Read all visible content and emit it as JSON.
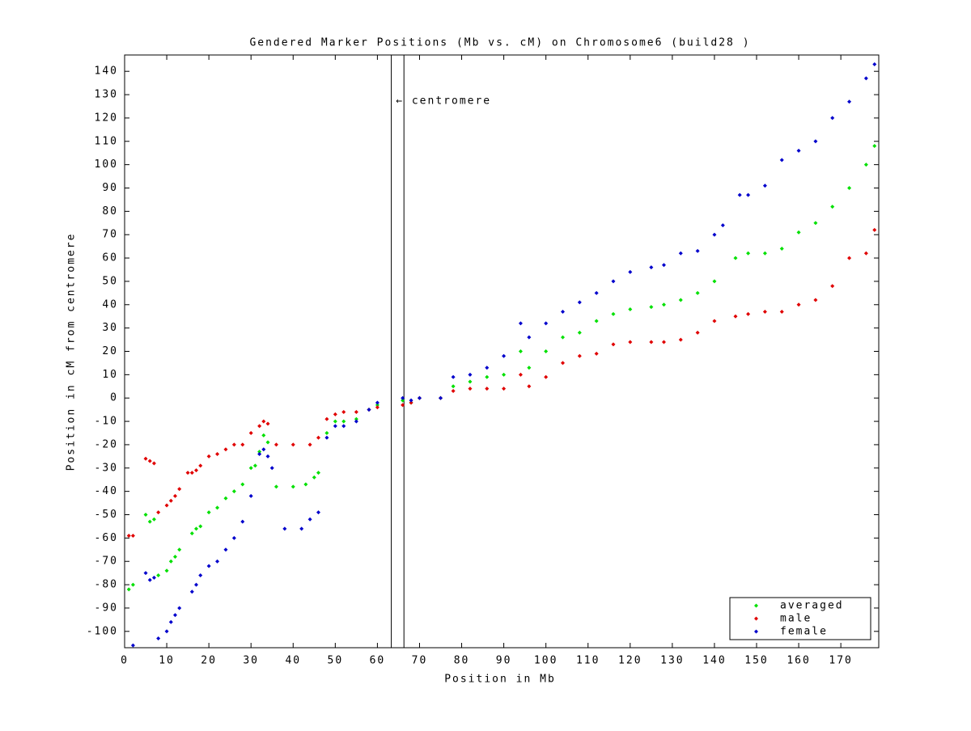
{
  "chart_data": {
    "type": "scatter",
    "title": "Gendered Marker Positions (Mb vs. cM) on Chromosome6 (build28 )",
    "x_label": "Position in Mb",
    "y_label": "Position in cM from centromere",
    "xlim": [
      0,
      179
    ],
    "ylim": [
      -107,
      147
    ],
    "xticks": [
      0,
      10,
      20,
      30,
      40,
      50,
      60,
      70,
      80,
      90,
      100,
      110,
      120,
      130,
      140,
      150,
      160,
      170
    ],
    "yticks": [
      -100,
      -90,
      -80,
      -70,
      -60,
      -50,
      -40,
      -30,
      -20,
      -10,
      0,
      10,
      20,
      30,
      40,
      50,
      60,
      70,
      80,
      90,
      100,
      110,
      120,
      130,
      140
    ],
    "vlines": [
      63.3,
      66.3
    ],
    "annotation": "← centromere",
    "legend_position": "lower right",
    "series": [
      {
        "name": "averaged",
        "color": "#00e000",
        "x": [
          1,
          2,
          5,
          6,
          7,
          8,
          10,
          11,
          12,
          13,
          16,
          17,
          18,
          20,
          22,
          24,
          26,
          28,
          30,
          31,
          32,
          33,
          34,
          36,
          40,
          43,
          45,
          46,
          48,
          50,
          52,
          55,
          58,
          60,
          66,
          68,
          70,
          75,
          78,
          82,
          86,
          90,
          94,
          96,
          100,
          104,
          108,
          112,
          116,
          120,
          125,
          128,
          132,
          136,
          140,
          145,
          148,
          152,
          156,
          160,
          164,
          168,
          172,
          176,
          178
        ],
        "values": [
          -82,
          -80,
          -50,
          -53,
          -52,
          -76,
          -74,
          -70,
          -68,
          -65,
          -58,
          -56,
          -55,
          -49,
          -47,
          -43,
          -40,
          -37,
          -30,
          -29,
          -23,
          -16,
          -19,
          -38,
          -38,
          -37,
          -34,
          -32,
          -15,
          -10,
          -10,
          -9,
          -5,
          -3,
          -1,
          -2,
          0,
          0,
          5,
          7,
          9,
          10,
          20,
          13,
          20,
          26,
          28,
          33,
          36,
          38,
          39,
          40,
          42,
          45,
          50,
          60,
          62,
          62,
          64,
          71,
          75,
          82,
          90,
          100,
          108
        ]
      },
      {
        "name": "male",
        "color": "#e00000",
        "x": [
          1,
          2,
          5,
          6,
          7,
          8,
          10,
          11,
          12,
          13,
          15,
          16,
          17,
          18,
          20,
          22,
          24,
          26,
          28,
          30,
          32,
          33,
          34,
          36,
          40,
          44,
          46,
          48,
          50,
          52,
          55,
          58,
          60,
          66,
          68,
          70,
          75,
          78,
          82,
          86,
          90,
          94,
          96,
          100,
          104,
          108,
          112,
          116,
          120,
          125,
          128,
          132,
          136,
          140,
          145,
          148,
          152,
          156,
          160,
          164,
          168,
          172,
          176,
          178
        ],
        "values": [
          -59,
          -59,
          -26,
          -27,
          -28,
          -49,
          -46,
          -44,
          -42,
          -39,
          -32,
          -32,
          -31,
          -29,
          -25,
          -24,
          -22,
          -20,
          -20,
          -15,
          -12,
          -10,
          -11,
          -20,
          -20,
          -20,
          -17,
          -9,
          -7,
          -6,
          -6,
          -5,
          -4,
          -3,
          -2,
          0,
          0,
          3,
          4,
          4,
          4,
          10,
          5,
          9,
          15,
          18,
          19,
          23,
          24,
          24,
          24,
          25,
          28,
          33,
          35,
          36,
          37,
          37,
          40,
          42,
          48,
          60,
          62,
          72
        ]
      },
      {
        "name": "female",
        "color": "#0000cc",
        "x": [
          2,
          5,
          6,
          7,
          8,
          10,
          11,
          12,
          13,
          16,
          17,
          18,
          20,
          22,
          24,
          26,
          28,
          30,
          32,
          33,
          34,
          35,
          38,
          42,
          44,
          46,
          48,
          50,
          52,
          55,
          58,
          60,
          66,
          68,
          70,
          75,
          78,
          82,
          86,
          90,
          94,
          96,
          100,
          104,
          108,
          112,
          116,
          120,
          125,
          128,
          132,
          136,
          140,
          142,
          146,
          148,
          152,
          156,
          160,
          164,
          168,
          172,
          176,
          178
        ],
        "values": [
          -106,
          -75,
          -78,
          -77,
          -103,
          -100,
          -96,
          -93,
          -90,
          -83,
          -80,
          -76,
          -72,
          -70,
          -65,
          -60,
          -53,
          -42,
          -24,
          -22,
          -25,
          -30,
          -56,
          -56,
          -52,
          -49,
          -17,
          -12,
          -12,
          -10,
          -5,
          -2,
          0,
          -1,
          0,
          0,
          9,
          10,
          13,
          18,
          32,
          26,
          32,
          37,
          41,
          45,
          50,
          54,
          56,
          57,
          62,
          63,
          70,
          74,
          87,
          87,
          91,
          102,
          106,
          110,
          120,
          127,
          137,
          143
        ]
      }
    ]
  }
}
